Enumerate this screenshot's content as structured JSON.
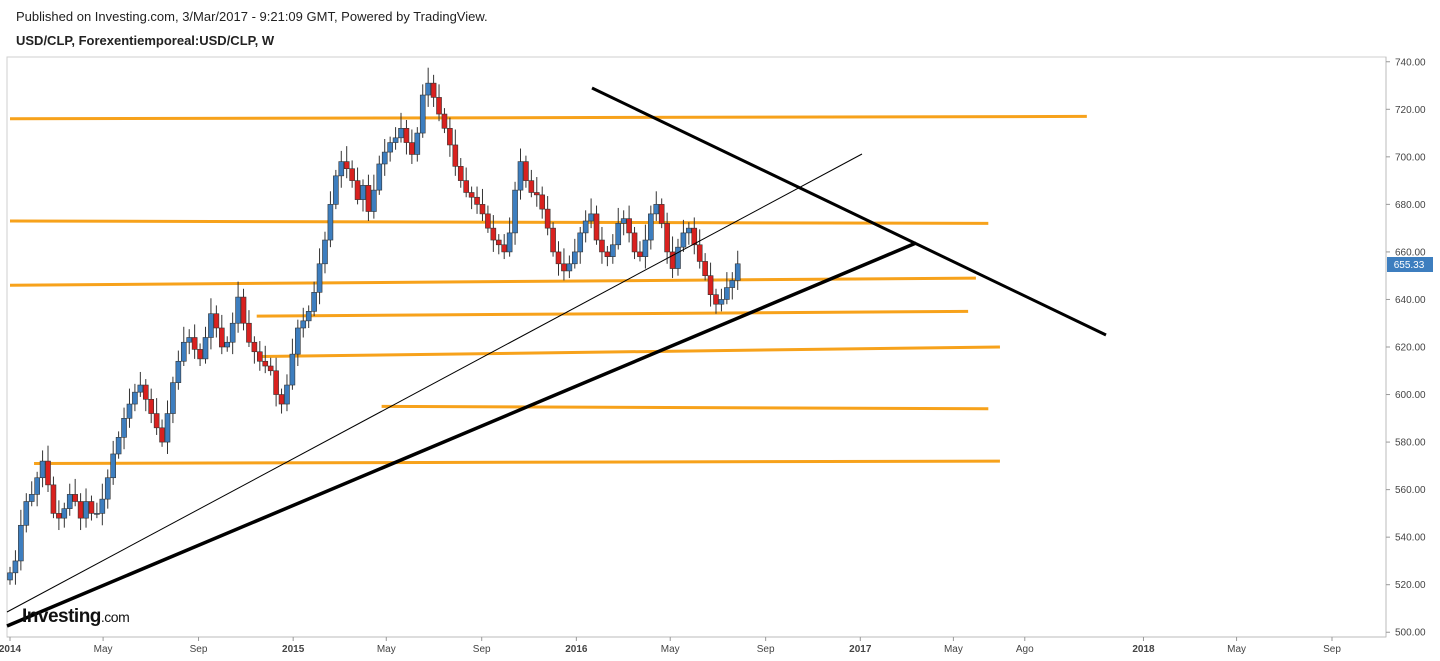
{
  "header": {
    "published": "Published on Investing.com, 3/Mar/2017 - 9:21:09 GMT, Powered by TradingView.",
    "symbol": "USD/CLP, Forexentiemporeal:USD/CLP, W"
  },
  "logo": {
    "text": "Investing",
    "suffix": ".com"
  },
  "colors": {
    "up": "#3d7ebf",
    "down": "#d9211f",
    "level": "#f7a21b",
    "trend": "#000000",
    "price_label_bg": "#3d7ebf"
  },
  "chart_data": {
    "type": "candlestick",
    "y_ticks": [
      "740.00",
      "720.00",
      "700.00",
      "680.00",
      "660.00",
      "640.00",
      "620.00",
      "600.00",
      "580.00",
      "560.00",
      "540.00",
      "520.00",
      "500.00"
    ],
    "ylim": [
      498,
      742
    ],
    "x_ticks": [
      "2014",
      "May",
      "Sep",
      "2015",
      "May",
      "Sep",
      "2016",
      "May",
      "Sep",
      "2017",
      "May",
      "Ago",
      "2018",
      "May",
      "Sep"
    ],
    "x_tick_dates": [
      "2014-01-01",
      "2014-05-01",
      "2014-09-01",
      "2015-01-01",
      "2015-05-01",
      "2015-09-01",
      "2016-01-01",
      "2016-05-01",
      "2016-09-01",
      "2017-01-01",
      "2017-05-01",
      "2017-08-01",
      "2018-01-01",
      "2018-05-01",
      "2018-09-01"
    ],
    "bold_x_ticks": [
      "2014",
      "2015",
      "2016",
      "2017",
      "2018"
    ],
    "current_price": "655.33",
    "weekly_close": [
      525,
      530,
      545,
      555,
      558,
      565,
      572,
      562,
      550,
      548,
      552,
      558,
      555,
      548,
      555,
      550,
      550,
      556,
      565,
      575,
      582,
      590,
      596,
      601,
      604,
      598,
      592,
      586,
      580,
      592,
      605,
      614,
      622,
      624,
      619,
      615,
      624,
      634,
      628,
      620,
      622,
      630,
      641,
      630,
      622,
      618,
      614,
      612,
      610,
      600,
      596,
      604,
      617,
      628,
      631,
      635,
      643,
      655,
      665,
      680,
      692,
      698,
      695,
      690,
      682,
      688,
      677,
      686,
      697,
      702,
      706,
      708,
      712,
      706,
      701,
      710,
      726,
      731,
      725,
      718,
      712,
      705,
      696,
      690,
      685,
      683,
      680,
      676,
      670,
      665,
      663,
      660,
      668,
      686,
      698,
      690,
      685,
      684,
      678,
      670,
      660,
      655,
      652,
      655,
      660,
      668,
      673,
      676,
      665,
      660,
      658,
      663,
      672,
      674,
      668,
      660,
      658,
      665,
      676,
      680,
      672,
      660,
      653,
      662,
      668,
      670,
      663,
      656,
      650,
      642,
      638,
      640,
      645,
      648,
      655
    ],
    "levels": [
      {
        "y1": 716,
        "y2": 717
      },
      {
        "y1": 673,
        "y2": 672
      },
      {
        "y1": 646,
        "y2": 649
      },
      {
        "y1": 633,
        "y2": 635
      },
      {
        "y1": 616,
        "y2": 620
      },
      {
        "y1": 595,
        "y2": 594
      },
      {
        "y1": 571,
        "y2": 572
      }
    ],
    "level_spans": [
      {
        "from": "2014-01-01",
        "to": "2017-10-20"
      },
      {
        "from": "2014-01-01",
        "to": "2017-06-15"
      },
      {
        "from": "2014-01-01",
        "to": "2017-05-30"
      },
      {
        "from": "2014-11-15",
        "to": "2017-05-20"
      },
      {
        "from": "2014-11-20",
        "to": "2017-06-30"
      },
      {
        "from": "2015-04-25",
        "to": "2017-06-15"
      },
      {
        "from": "2014-02-01",
        "to": "2017-06-30"
      }
    ]
  }
}
